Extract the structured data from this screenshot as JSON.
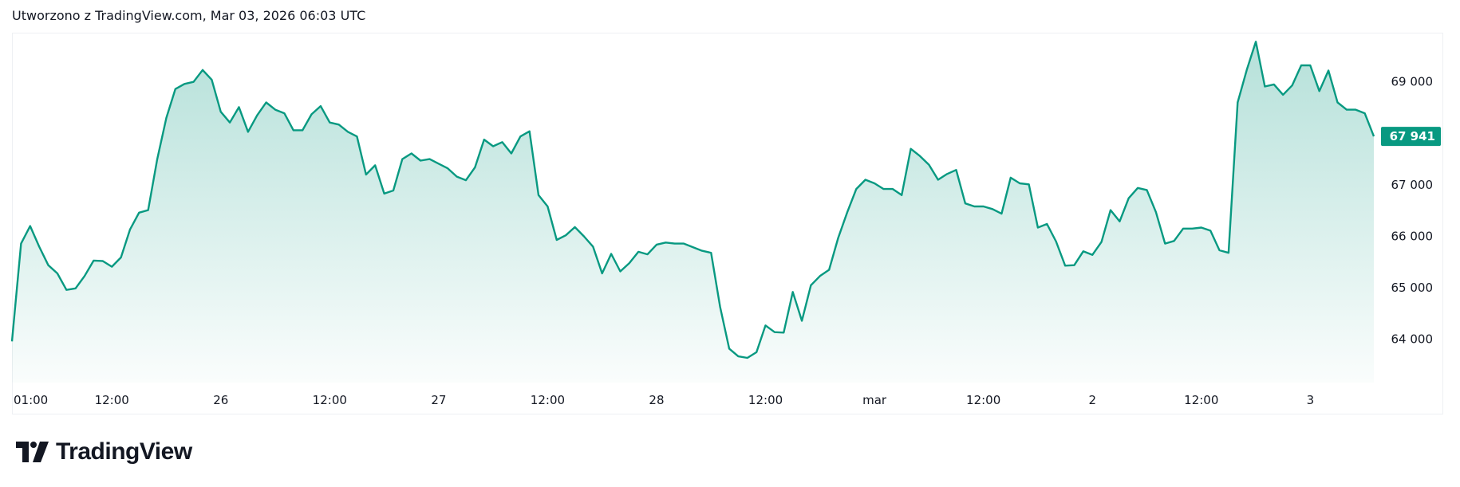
{
  "header": {
    "title": "Utworzono z TradingView.com, Mar 03, 2026 06:03 UTC"
  },
  "branding": {
    "logo_text": "TradingView"
  },
  "colors": {
    "line": "#089981",
    "price_label_bg": "#089981",
    "price_label_text": "#ffffff",
    "text": "#131722"
  },
  "chart_data": {
    "type": "area",
    "title": "",
    "xlabel": "",
    "ylabel": "",
    "x_start": "2026-02-25 01:00",
    "x_step_hours": 1,
    "x_range": [
      "2026-02-25 01:00",
      "2026-03-03 07:00"
    ],
    "ylim": [
      63160,
      69955
    ],
    "grid": false,
    "legend": "none",
    "y_axis_side": "right",
    "last_price": {
      "value": 67941,
      "label": "67 941"
    },
    "y_ticks": [
      {
        "value": 64000,
        "label": "64 000"
      },
      {
        "value": 65000,
        "label": "65 000"
      },
      {
        "value": 66000,
        "label": "66 000"
      },
      {
        "value": 67000,
        "label": "67 000"
      },
      {
        "value": 69000,
        "label": "69 000"
      }
    ],
    "x_ticks": [
      {
        "label": "01:00",
        "t": "2026-02-25 01:00"
      },
      {
        "label": "12:00",
        "t": "2026-02-25 12:00"
      },
      {
        "label": "26",
        "t": "2026-02-26 00:00"
      },
      {
        "label": "12:00",
        "t": "2026-02-26 12:00"
      },
      {
        "label": "27",
        "t": "2026-02-27 00:00"
      },
      {
        "label": "12:00",
        "t": "2026-02-27 12:00"
      },
      {
        "label": "28",
        "t": "2026-02-28 00:00"
      },
      {
        "label": "12:00",
        "t": "2026-02-28 12:00"
      },
      {
        "label": "mar",
        "t": "2026-03-01 00:00"
      },
      {
        "label": "12:00",
        "t": "2026-03-01 12:00"
      },
      {
        "label": "2",
        "t": "2026-03-02 00:00"
      },
      {
        "label": "12:00",
        "t": "2026-03-02 12:00"
      },
      {
        "label": "3",
        "t": "2026-03-03 00:00"
      }
    ],
    "values": [
      63960,
      65860,
      66200,
      65800,
      65440,
      65280,
      64960,
      64990,
      65230,
      65530,
      65520,
      65410,
      65590,
      66130,
      66460,
      66510,
      67500,
      68300,
      68860,
      68960,
      69000,
      69230,
      69040,
      68420,
      68210,
      68510,
      68030,
      68350,
      68600,
      68460,
      68390,
      68060,
      68060,
      68370,
      68530,
      68210,
      68170,
      68030,
      67940,
      67200,
      67380,
      66830,
      66890,
      67500,
      67610,
      67470,
      67500,
      67410,
      67320,
      67160,
      67090,
      67340,
      67880,
      67750,
      67830,
      67610,
      67940,
      68040,
      66800,
      66580,
      65930,
      66020,
      66180,
      66000,
      65800,
      65280,
      65660,
      65320,
      65480,
      65700,
      65650,
      65840,
      65880,
      65860,
      65860,
      65790,
      65720,
      65680,
      64630,
      63820,
      63670,
      63640,
      63750,
      64270,
      64140,
      64130,
      64920,
      64360,
      65050,
      65230,
      65350,
      65970,
      66470,
      66920,
      67100,
      67030,
      66920,
      66920,
      66800,
      67700,
      67560,
      67390,
      67100,
      67210,
      67290,
      66640,
      66580,
      66580,
      66530,
      66440,
      67140,
      67030,
      67010,
      66170,
      66240,
      65900,
      65430,
      65440,
      65710,
      65640,
      65890,
      66510,
      66290,
      66740,
      66940,
      66900,
      66470,
      65860,
      65910,
      66150,
      66150,
      66170,
      66110,
      65730,
      65680,
      68600,
      69230,
      69780,
      68910,
      68950,
      68750,
      68930,
      69320,
      69320,
      68820,
      69220,
      68600,
      68460,
      68460,
      68390,
      67941
    ]
  }
}
